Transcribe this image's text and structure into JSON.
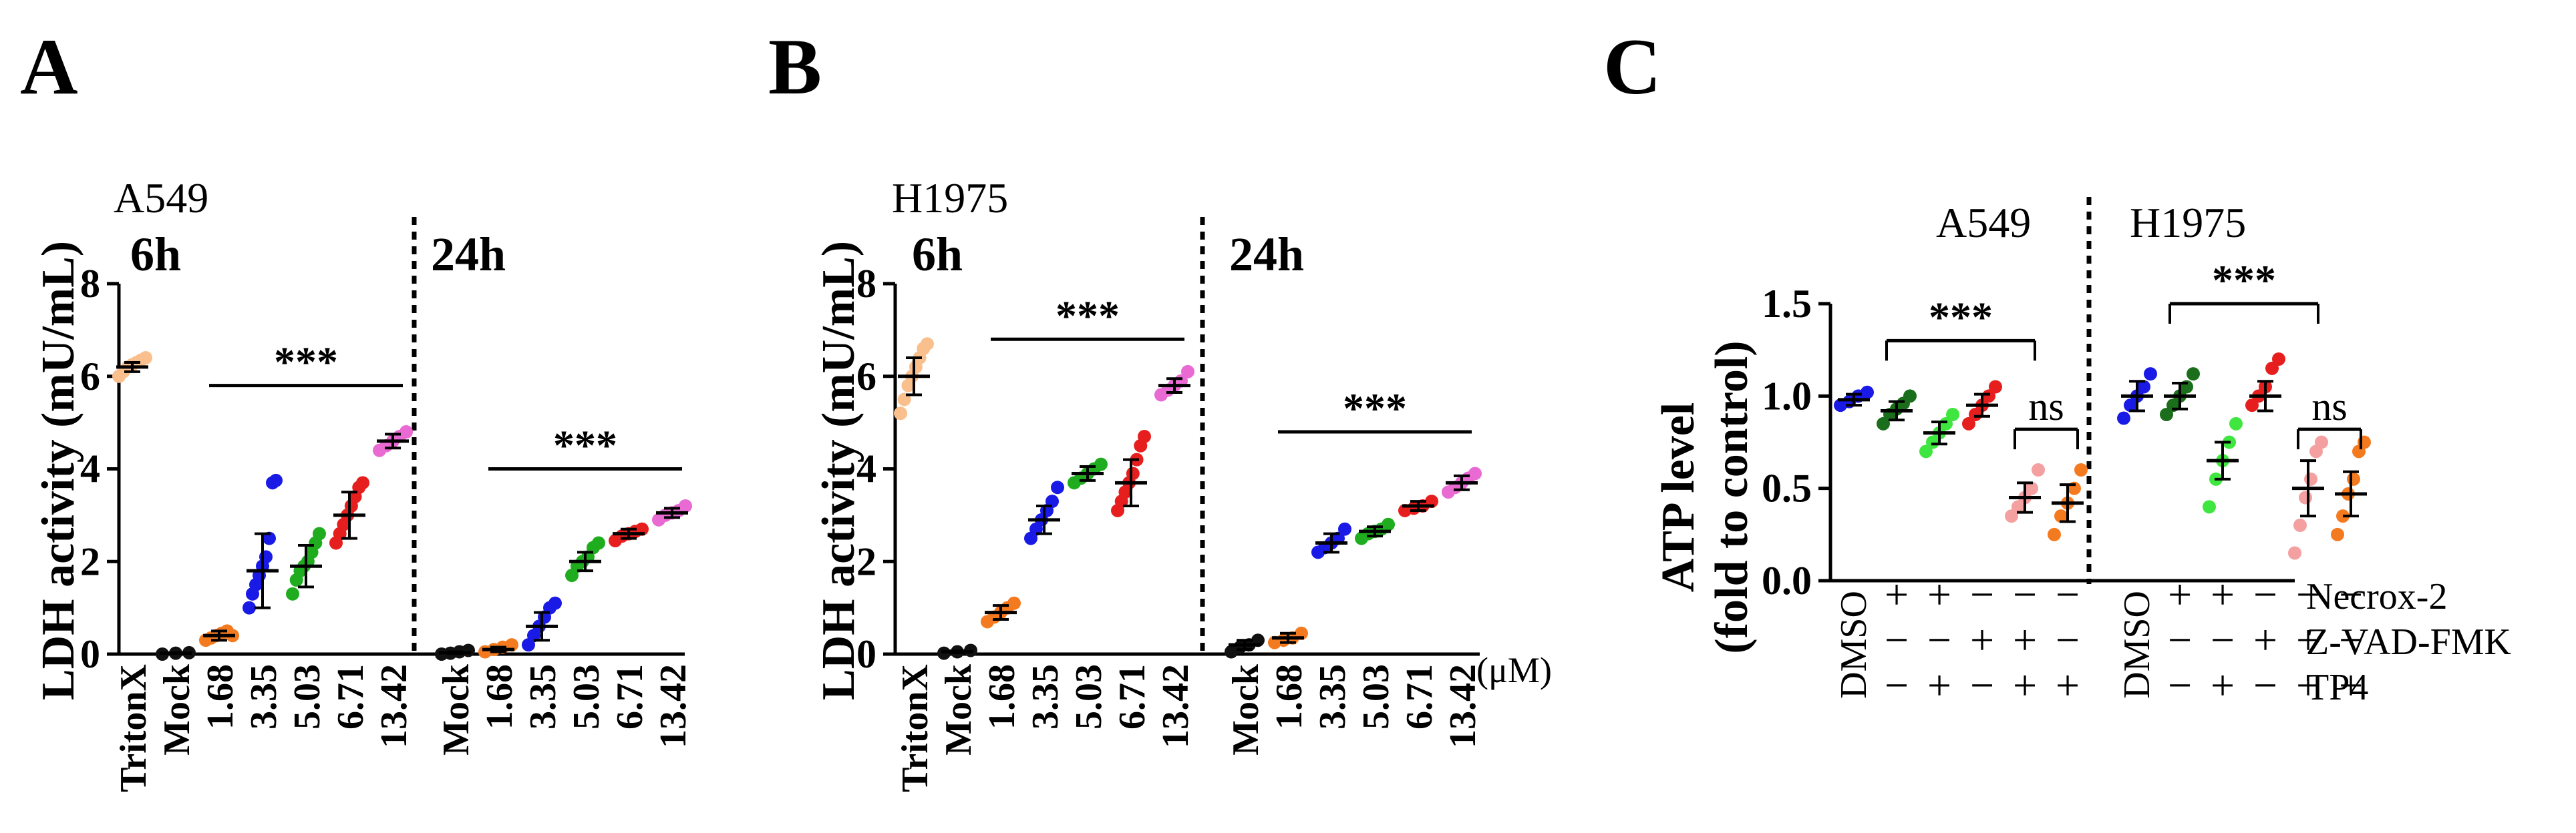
{
  "chart_data": [
    {
      "panel": "A",
      "type": "scatter",
      "cell_line": "A549",
      "ylabel": "LDH activity (mU/mL)",
      "ylim": [
        0,
        8
      ],
      "yticks": [
        "0",
        "2",
        "4",
        "6",
        "8"
      ],
      "time_labels": [
        "6h",
        "24h"
      ],
      "categories": [
        "TritonX",
        "Mock",
        "1.68",
        "3.35",
        "5.03",
        "6.71",
        "13.42",
        "Mock",
        "1.68",
        "3.35",
        "5.03",
        "6.71",
        "13.42"
      ],
      "groups": [
        {
          "color": "#F9C08E",
          "mean": 6.2,
          "sd": 0.1,
          "points": [
            6.0,
            6.1,
            6.2,
            6.25,
            6.3,
            6.35,
            6.4
          ]
        },
        {
          "color": "#111111",
          "mean": 0.02,
          "sd": 0.01,
          "points": [
            0.0,
            0.02,
            0.03
          ]
        },
        {
          "color": "#F47A1F",
          "mean": 0.4,
          "sd": 0.1,
          "points": [
            0.3,
            0.35,
            0.4,
            0.45,
            0.5,
            0.4
          ]
        },
        {
          "color": "#1A1AE6",
          "mean": 1.8,
          "sd": 0.8,
          "points": [
            1.0,
            1.3,
            1.5,
            1.7,
            1.9,
            2.1,
            2.5,
            3.7,
            3.75
          ]
        },
        {
          "color": "#1FAD1F",
          "mean": 1.9,
          "sd": 0.45,
          "points": [
            1.3,
            1.6,
            1.8,
            1.9,
            2.0,
            2.2,
            2.4,
            2.6
          ]
        },
        {
          "color": "#E61E1E",
          "mean": 3.0,
          "sd": 0.5,
          "points": [
            2.4,
            2.6,
            2.8,
            3.0,
            3.2,
            3.4,
            3.6,
            3.7
          ]
        },
        {
          "color": "#E86AD2",
          "mean": 4.6,
          "sd": 0.15,
          "points": [
            4.4,
            4.5,
            4.6,
            4.7,
            4.8
          ]
        },
        {
          "color": "#111111",
          "mean": 0.03,
          "sd": 0.02,
          "points": [
            0.0,
            0.02,
            0.05,
            0.08
          ]
        },
        {
          "color": "#F47A1F",
          "mean": 0.1,
          "sd": 0.05,
          "points": [
            0.05,
            0.1,
            0.15,
            0.2
          ]
        },
        {
          "color": "#1A1AE6",
          "mean": 0.6,
          "sd": 0.3,
          "points": [
            0.2,
            0.4,
            0.6,
            0.8,
            1.0,
            1.1
          ]
        },
        {
          "color": "#1FAD1F",
          "mean": 2.0,
          "sd": 0.2,
          "points": [
            1.7,
            1.9,
            2.0,
            2.1,
            2.3,
            2.4
          ]
        },
        {
          "color": "#E61E1E",
          "mean": 2.6,
          "sd": 0.1,
          "points": [
            2.45,
            2.55,
            2.6,
            2.65,
            2.7
          ]
        },
        {
          "color": "#E86AD2",
          "mean": 3.05,
          "sd": 0.1,
          "points": [
            2.9,
            3.0,
            3.05,
            3.1,
            3.2
          ]
        }
      ],
      "significance": [
        {
          "label": "***",
          "from_index": 2,
          "to_index": 6,
          "y": 5.8
        },
        {
          "label": "***",
          "from_index": 8,
          "to_index": 12,
          "y": 4.0
        }
      ]
    },
    {
      "panel": "B",
      "type": "scatter",
      "cell_line": "H1975",
      "ylabel": "LDH activity (mU/mL)",
      "ylim": [
        0,
        8
      ],
      "yticks": [
        "0",
        "2",
        "4",
        "6",
        "8"
      ],
      "time_labels": [
        "6h",
        "24h"
      ],
      "unit": "(μM)",
      "categories": [
        "TritonX",
        "Mock",
        "1.68",
        "3.35",
        "5.03",
        "6.71",
        "13.42",
        "Mock",
        "1.68",
        "3.35",
        "5.03",
        "6.71",
        "13.42"
      ],
      "groups": [
        {
          "color": "#F9C08E",
          "mean": 6.0,
          "sd": 0.4,
          "points": [
            5.2,
            5.5,
            5.8,
            6.0,
            6.2,
            6.4,
            6.6,
            6.7
          ]
        },
        {
          "color": "#111111",
          "mean": 0.05,
          "sd": 0.02,
          "points": [
            0.02,
            0.05,
            0.08
          ]
        },
        {
          "color": "#F47A1F",
          "mean": 0.9,
          "sd": 0.15,
          "points": [
            0.7,
            0.8,
            0.9,
            1.0,
            1.1
          ]
        },
        {
          "color": "#1A1AE6",
          "mean": 2.9,
          "sd": 0.3,
          "points": [
            2.5,
            2.7,
            2.9,
            3.1,
            3.3,
            3.6
          ]
        },
        {
          "color": "#1FAD1F",
          "mean": 3.9,
          "sd": 0.15,
          "points": [
            3.7,
            3.8,
            3.9,
            4.0,
            4.1
          ]
        },
        {
          "color": "#E61E1E",
          "mean": 3.7,
          "sd": 0.5,
          "points": [
            3.1,
            3.3,
            3.5,
            3.7,
            3.9,
            4.2,
            4.5,
            4.7
          ]
        },
        {
          "color": "#E86AD2",
          "mean": 5.8,
          "sd": 0.15,
          "points": [
            5.6,
            5.7,
            5.8,
            5.9,
            6.1
          ]
        },
        {
          "color": "#111111",
          "mean": 0.2,
          "sd": 0.1,
          "points": [
            0.05,
            0.15,
            0.2,
            0.3
          ]
        },
        {
          "color": "#F47A1F",
          "mean": 0.35,
          "sd": 0.1,
          "points": [
            0.25,
            0.3,
            0.35,
            0.45
          ]
        },
        {
          "color": "#1A1AE6",
          "mean": 2.4,
          "sd": 0.2,
          "points": [
            2.2,
            2.3,
            2.4,
            2.5,
            2.7
          ]
        },
        {
          "color": "#1FAD1F",
          "mean": 2.65,
          "sd": 0.1,
          "points": [
            2.5,
            2.6,
            2.65,
            2.7,
            2.8
          ]
        },
        {
          "color": "#E61E1E",
          "mean": 3.2,
          "sd": 0.1,
          "points": [
            3.1,
            3.15,
            3.2,
            3.3
          ]
        },
        {
          "color": "#E86AD2",
          "mean": 3.7,
          "sd": 0.15,
          "points": [
            3.5,
            3.6,
            3.7,
            3.8,
            3.9
          ]
        }
      ],
      "significance": [
        {
          "label": "***",
          "from_index": 2,
          "to_index": 6,
          "y": 6.8
        },
        {
          "label": "***",
          "from_index": 8,
          "to_index": 12,
          "y": 4.8
        }
      ]
    },
    {
      "panel": "C",
      "type": "scatter",
      "ylabel_line1": "ATP level",
      "ylabel_line2": "(fold to control)",
      "ylim": [
        0,
        1.5
      ],
      "yticks": [
        "0.0",
        "0.5",
        "1.0",
        "1.5"
      ],
      "cell_lines": [
        "A549",
        "H1975"
      ],
      "treatment_rows": [
        "Necrox-2",
        "Z-VAD-FMK",
        "TP4"
      ],
      "first_label": "DMSO",
      "column_signs": [
        [
          "+",
          "−",
          "−"
        ],
        [
          "+",
          "−",
          "+"
        ],
        [
          "−",
          "+",
          "−"
        ],
        [
          "−",
          "+",
          "+"
        ],
        [
          "−",
          "−",
          "+"
        ]
      ],
      "groups": [
        {
          "color": "#1A1AE6",
          "mean": 0.98,
          "sd": 0.03,
          "points": [
            0.95,
            0.97,
            1.0,
            1.02
          ]
        },
        {
          "color": "#1B6E1B",
          "mean": 0.92,
          "sd": 0.05,
          "points": [
            0.85,
            0.9,
            0.93,
            0.96,
            1.0
          ]
        },
        {
          "color": "#3FE63F",
          "mean": 0.8,
          "sd": 0.06,
          "points": [
            0.7,
            0.75,
            0.8,
            0.85,
            0.9
          ]
        },
        {
          "color": "#E61E1E",
          "mean": 0.95,
          "sd": 0.06,
          "points": [
            0.85,
            0.9,
            0.95,
            1.0,
            1.05
          ]
        },
        {
          "color": "#F4A0A0",
          "mean": 0.45,
          "sd": 0.08,
          "points": [
            0.35,
            0.4,
            0.45,
            0.5,
            0.6
          ]
        },
        {
          "color": "#F47A1F",
          "mean": 0.42,
          "sd": 0.1,
          "points": [
            0.25,
            0.35,
            0.42,
            0.5,
            0.6
          ]
        },
        {
          "color": "#1A1AE6",
          "mean": 1.0,
          "sd": 0.08,
          "points": [
            0.88,
            0.95,
            1.0,
            1.05,
            1.12
          ]
        },
        {
          "color": "#1B6E1B",
          "mean": 1.0,
          "sd": 0.07,
          "points": [
            0.9,
            0.95,
            1.0,
            1.05,
            1.12
          ]
        },
        {
          "color": "#3FE63F",
          "mean": 0.65,
          "sd": 0.1,
          "points": [
            0.4,
            0.55,
            0.65,
            0.75,
            0.85
          ]
        },
        {
          "color": "#E61E1E",
          "mean": 1.0,
          "sd": 0.08,
          "points": [
            0.95,
            1.0,
            1.05,
            1.15,
            1.2
          ]
        },
        {
          "color": "#F4A0A0",
          "mean": 0.5,
          "sd": 0.15,
          "points": [
            0.15,
            0.3,
            0.45,
            0.55,
            0.7,
            0.75
          ]
        },
        {
          "color": "#F47A1F",
          "mean": 0.47,
          "sd": 0.12,
          "points": [
            0.25,
            0.35,
            0.47,
            0.55,
            0.7,
            0.75
          ]
        }
      ],
      "significance": [
        {
          "label": "***",
          "from_index": 1,
          "to_index": 4,
          "y": 1.3
        },
        {
          "label": "ns",
          "from_index": 4,
          "to_index": 5,
          "y": 0.82
        },
        {
          "label": "***",
          "from_index": 7,
          "to_index": 10,
          "y": 1.5
        },
        {
          "label": "ns",
          "from_index": 10,
          "to_index": 11,
          "y": 0.82
        }
      ]
    }
  ]
}
